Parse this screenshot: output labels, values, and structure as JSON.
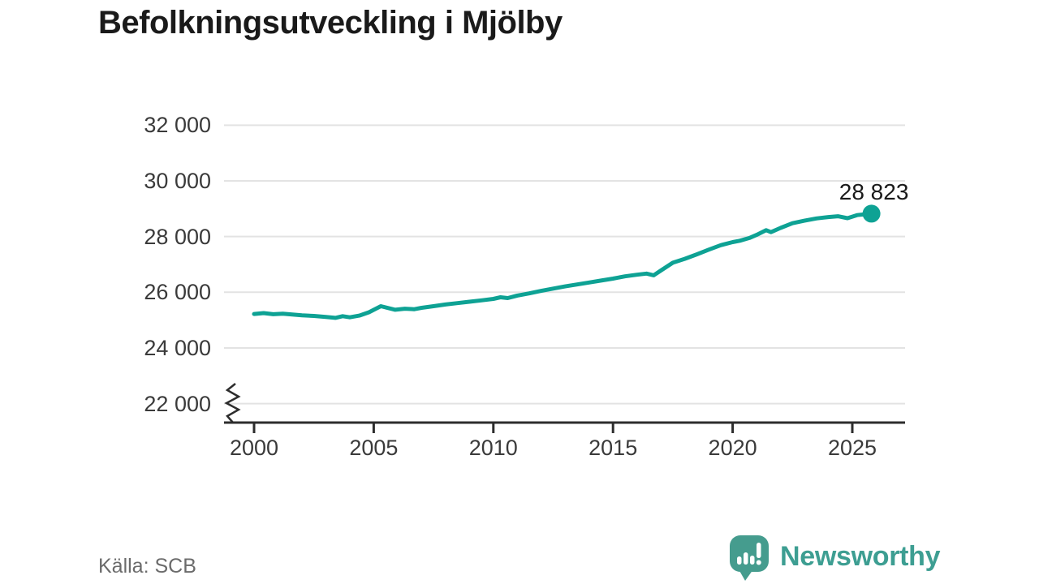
{
  "title": "Befolkningsutveckling i Mjölby",
  "source_label": "Källa: SCB",
  "branding": {
    "wordmark": "Newsworthy",
    "icon": "speech-bubble-bar-chart-exclamation",
    "icon_color": "#459c8e",
    "wordmark_color": "#3d9e92"
  },
  "colors": {
    "background": "#ffffff",
    "title_text": "#1a1a1a",
    "line": "#0ea294",
    "end_dot": "#0ea294",
    "grid": "#e3e3e3",
    "axis": "#2d2d2d",
    "tick_text": "#3a3a3a",
    "source_text": "#6b6b6b"
  },
  "chart_data": {
    "type": "line",
    "title": "Befolkningsutveckling i Mjölby",
    "xlabel": "",
    "ylabel": "",
    "grid": "horizontal",
    "legend": "none",
    "x_axis": {
      "tick_values": [
        2000,
        2005,
        2010,
        2015,
        2020,
        2025
      ],
      "tick_labels": [
        "2000",
        "2005",
        "2010",
        "2015",
        "2020",
        "2025"
      ],
      "displayed_range": [
        1998.7,
        2027.2
      ]
    },
    "y_axis": {
      "tick_values": [
        22000,
        24000,
        26000,
        28000,
        30000,
        32000
      ],
      "tick_labels": [
        "22 000",
        "24 000",
        "26 000",
        "28 000",
        "30 000",
        "32 000"
      ],
      "displayed_range": [
        22000,
        32000
      ],
      "axis_break_below_min": true
    },
    "series": [
      {
        "x": [
          2000.0,
          2000.4,
          2000.8,
          2001.2,
          2001.6,
          2002.0,
          2002.5,
          2003.0,
          2003.4,
          2003.7,
          2004.0,
          2004.4,
          2004.8,
          2005.3,
          2005.9,
          2006.3,
          2006.7,
          2007.0,
          2007.5,
          2008.0,
          2008.5,
          2009.0,
          2009.5,
          2010.0,
          2010.3,
          2010.6,
          2011.0,
          2011.5,
          2012.0,
          2012.5,
          2013.0,
          2013.5,
          2014.0,
          2014.5,
          2015.0,
          2015.5,
          2016.0,
          2016.4,
          2016.7,
          2017.0,
          2017.5,
          2018.0,
          2018.5,
          2019.0,
          2019.5,
          2020.0,
          2020.3,
          2020.7,
          2021.0,
          2021.4,
          2021.6,
          2022.0,
          2022.5,
          2023.0,
          2023.5,
          2024.0,
          2024.4,
          2024.8,
          2025.2,
          2025.8
        ],
        "values": [
          25220,
          25250,
          25210,
          25230,
          25200,
          25170,
          25150,
          25110,
          25080,
          25140,
          25100,
          25160,
          25280,
          25500,
          25370,
          25410,
          25390,
          25440,
          25500,
          25560,
          25610,
          25660,
          25710,
          25760,
          25820,
          25790,
          25880,
          25960,
          26050,
          26130,
          26210,
          26280,
          26350,
          26420,
          26490,
          26570,
          26630,
          26670,
          26610,
          26780,
          27060,
          27200,
          27360,
          27530,
          27690,
          27800,
          27850,
          27950,
          28060,
          28230,
          28160,
          28310,
          28480,
          28570,
          28650,
          28700,
          28730,
          28660,
          28770,
          28823
        ],
        "end_value": 28823,
        "end_label": "28 823"
      }
    ],
    "source": "SCB"
  }
}
